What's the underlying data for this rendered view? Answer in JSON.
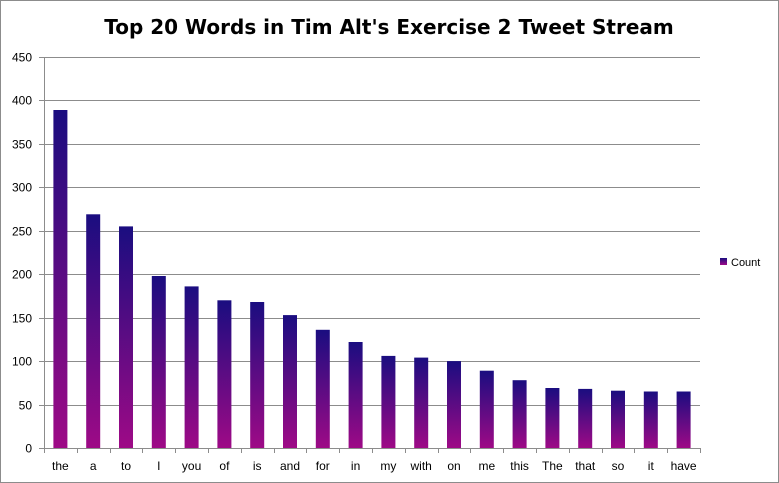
{
  "chart_data": {
    "type": "bar",
    "title": "Top 20 Words in Tim Alt's Exercise 2 Tweet Stream",
    "xlabel": "",
    "ylabel": "",
    "categories": [
      "the",
      "a",
      "to",
      "I",
      "you",
      "of",
      "is",
      "and",
      "for",
      "in",
      "my",
      "with",
      "on",
      "me",
      "this",
      "The",
      "that",
      "so",
      "it",
      "have"
    ],
    "series": [
      {
        "name": "Count",
        "values": [
          389,
          269,
          255,
          198,
          186,
          170,
          168,
          153,
          136,
          122,
          106,
          104,
          100,
          89,
          78,
          69,
          68,
          66,
          65,
          65
        ]
      }
    ],
    "ylim": [
      0,
      450
    ],
    "yticks": [
      0,
      50,
      100,
      150,
      200,
      250,
      300,
      350,
      400,
      450
    ],
    "grid": true,
    "legend_position": "right",
    "colors": {
      "bar_top": "#1a0d80",
      "bar_bottom": "#9e0a86",
      "grid": "#8c8c8c"
    }
  }
}
